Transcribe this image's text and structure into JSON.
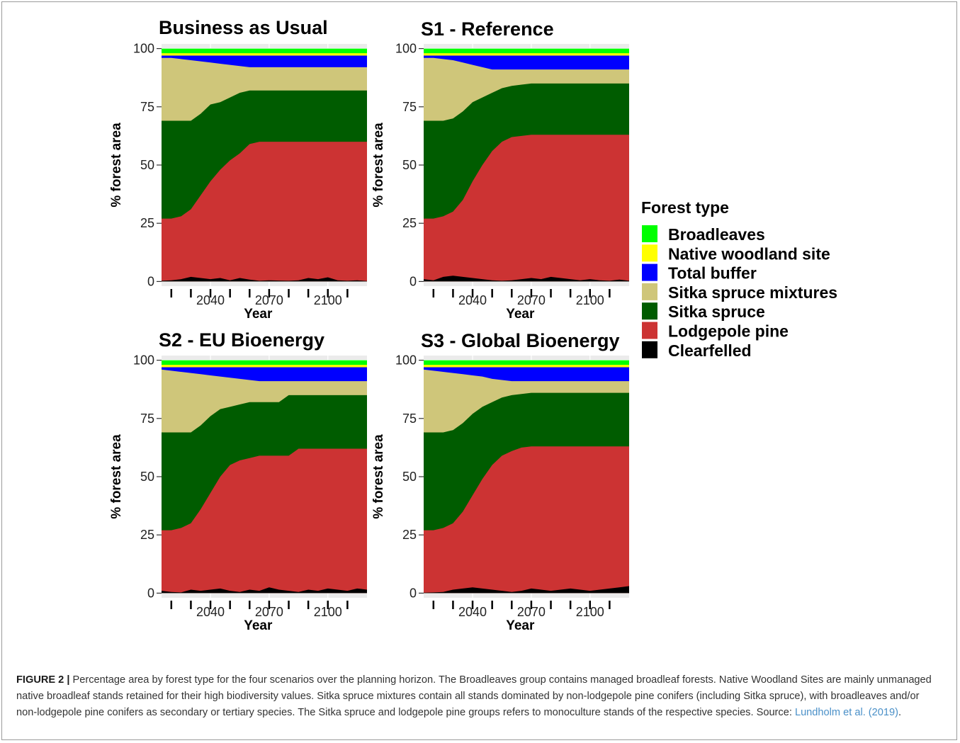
{
  "figure": {
    "legend": {
      "title": "Forest type",
      "entries": [
        {
          "label": "Broadleaves",
          "color": "#00ff00"
        },
        {
          "label": "Native woodland site",
          "color": "#ffff00"
        },
        {
          "label": "Total buffer",
          "color": "#0000ff"
        },
        {
          "label": "Sitka spruce mixtures",
          "color": "#cfc67a"
        },
        {
          "label": "Sitka spruce",
          "color": "#005c00"
        },
        {
          "label": "Lodgepole pine",
          "color": "#cc3333"
        },
        {
          "label": "Clearfelled",
          "color": "#000000"
        }
      ]
    },
    "caption": {
      "label": "FIGURE 2 |",
      "text": " Percentage area by forest type for the four scenarios over the planning horizon. The Broadleaves group contains managed broadleaf forests. Native Woodland Sites are mainly unmanaged native broadleaf stands retained for their high biodiversity values. Sitka spruce mixtures contain all stands dominated by non-lodgepole pine conifers (including Sitka spruce), with broadleaves and/or non-lodgepole pine conifers as secondary or tertiary species. The Sitka spruce and lodgepole pine groups refers to monoculture stands of the respective species. Source: ",
      "link": "Lundholm et al. (2019)",
      "end": "."
    }
  },
  "chart_data": [
    {
      "type": "area",
      "stacked": true,
      "title": "Business as Usual",
      "xlabel": "Year",
      "ylabel": "% forest area",
      "xlim": [
        2015,
        2120
      ],
      "ylim": [
        -2,
        102
      ],
      "xticks": [
        2040,
        2070,
        2100
      ],
      "yticks": [
        0,
        25,
        50,
        75,
        100
      ],
      "grid": true,
      "legend_position": "right",
      "series_order": [
        "Clearfelled",
        "Lodgepole pine",
        "Sitka spruce",
        "Sitka spruce mixtures",
        "Total buffer",
        "Native woodland site",
        "Broadleaves"
      ],
      "x": [
        2015,
        2020,
        2025,
        2030,
        2035,
        2040,
        2045,
        2050,
        2055,
        2060,
        2065,
        2070,
        2075,
        2080,
        2085,
        2090,
        2095,
        2100,
        2105,
        2110,
        2115,
        2120
      ],
      "cumulative": {
        "Clearfelled": [
          0.3,
          0.5,
          1.0,
          2.0,
          1.5,
          1.0,
          1.5,
          0.5,
          1.5,
          0.8,
          0.3,
          0.5,
          0.4,
          0.3,
          0.5,
          1.5,
          1.0,
          1.8,
          0.5,
          0.3,
          0.5,
          0.2
        ],
        "Lodgepole pine": [
          27,
          27,
          28,
          31,
          37,
          43,
          48,
          52,
          55,
          59,
          60,
          60,
          60,
          60,
          60,
          60,
          60,
          60,
          60,
          60,
          60,
          60
        ],
        "Sitka spruce": [
          69,
          69,
          69,
          69,
          72,
          76,
          77,
          79,
          81,
          82,
          82,
          82,
          82,
          82,
          82,
          82,
          82,
          82,
          82,
          82,
          82,
          82
        ],
        "Sitka spruce mixtures": [
          96,
          96,
          95.5,
          95,
          94.5,
          94,
          93.5,
          93,
          92.5,
          92,
          92,
          92,
          92,
          92,
          92,
          92,
          92,
          92,
          92,
          92,
          92,
          92
        ],
        "Total buffer": [
          97,
          97,
          97,
          97,
          97,
          97,
          97,
          97,
          97,
          97,
          97,
          97,
          97,
          97,
          97,
          97,
          97,
          97,
          97,
          97,
          97,
          97
        ],
        "Native woodland site": [
          98,
          98,
          98,
          98,
          98,
          98,
          98,
          98,
          98,
          98,
          98,
          98,
          98,
          98,
          98,
          98,
          98,
          98,
          98,
          98,
          98,
          98
        ],
        "Broadleaves": [
          100,
          100,
          100,
          100,
          100,
          100,
          100,
          100,
          100,
          100,
          100,
          100,
          100,
          100,
          100,
          100,
          100,
          100,
          100,
          100,
          100,
          100
        ]
      }
    },
    {
      "type": "area",
      "stacked": true,
      "title": "S1 - Reference",
      "xlabel": "Year",
      "ylabel": "% forest area",
      "xlim": [
        2015,
        2120
      ],
      "ylim": [
        -2,
        102
      ],
      "xticks": [
        2040,
        2070,
        2100
      ],
      "yticks": [
        0,
        25,
        50,
        75,
        100
      ],
      "grid": true,
      "legend_position": "right",
      "series_order": [
        "Clearfelled",
        "Lodgepole pine",
        "Sitka spruce",
        "Sitka spruce mixtures",
        "Total buffer",
        "Native woodland site",
        "Broadleaves"
      ],
      "x": [
        2015,
        2020,
        2025,
        2030,
        2035,
        2040,
        2045,
        2050,
        2055,
        2060,
        2065,
        2070,
        2075,
        2080,
        2085,
        2090,
        2095,
        2100,
        2105,
        2110,
        2115,
        2120
      ],
      "cumulative": {
        "Clearfelled": [
          1.0,
          0.5,
          2.0,
          2.5,
          2.0,
          1.5,
          1.0,
          0.5,
          0.3,
          0.5,
          1.0,
          1.5,
          1.0,
          2.0,
          1.5,
          1.0,
          0.5,
          1.0,
          0.5,
          0.3,
          0.8,
          0.3
        ],
        "Lodgepole pine": [
          27,
          27,
          28,
          30,
          35,
          43,
          50,
          56,
          60,
          62,
          62.5,
          63,
          63,
          63,
          63,
          63,
          63,
          63,
          63,
          63,
          63,
          63
        ],
        "Sitka spruce": [
          69,
          69,
          69,
          70,
          73,
          77,
          79,
          81,
          83,
          84,
          84.5,
          85,
          85,
          85,
          85,
          85,
          85,
          85,
          85,
          85,
          85,
          85
        ],
        "Sitka spruce mixtures": [
          96,
          96,
          95.5,
          95,
          94,
          93,
          92,
          91,
          91,
          91,
          91,
          91,
          91,
          91,
          91,
          91,
          91,
          91,
          91,
          91,
          91,
          91
        ],
        "Total buffer": [
          97,
          97,
          97,
          97,
          97,
          97,
          97,
          97,
          97,
          97,
          97,
          97,
          97,
          97,
          97,
          97,
          97,
          97,
          97,
          97,
          97,
          97
        ],
        "Native woodland site": [
          98,
          98,
          98,
          98,
          98,
          98,
          98,
          98,
          98,
          98,
          98,
          98,
          98,
          98,
          98,
          98,
          98,
          98,
          98,
          98,
          98,
          98
        ],
        "Broadleaves": [
          100,
          100,
          100,
          100,
          100,
          100,
          100,
          100,
          100,
          100,
          100,
          100,
          100,
          100,
          100,
          100,
          100,
          100,
          100,
          100,
          100,
          100
        ]
      }
    },
    {
      "type": "area",
      "stacked": true,
      "title": "S2 - EU Bioenergy",
      "xlabel": "Year",
      "ylabel": "% forest area",
      "xlim": [
        2015,
        2120
      ],
      "ylim": [
        -2,
        102
      ],
      "xticks": [
        2040,
        2070,
        2100
      ],
      "yticks": [
        0,
        25,
        50,
        75,
        100
      ],
      "grid": true,
      "legend_position": "right",
      "series_order": [
        "Clearfelled",
        "Lodgepole pine",
        "Sitka spruce",
        "Sitka spruce mixtures",
        "Total buffer",
        "Native woodland site",
        "Broadleaves"
      ],
      "x": [
        2015,
        2020,
        2025,
        2030,
        2035,
        2040,
        2045,
        2050,
        2055,
        2060,
        2065,
        2070,
        2075,
        2080,
        2085,
        2090,
        2095,
        2100,
        2105,
        2110,
        2115,
        2120
      ],
      "cumulative": {
        "Clearfelled": [
          1.0,
          0.5,
          0.3,
          1.5,
          1.0,
          1.5,
          2.0,
          1.0,
          0.5,
          1.5,
          1.0,
          2.5,
          1.5,
          1.0,
          0.5,
          1.5,
          1.0,
          2.0,
          1.5,
          1.0,
          2.0,
          1.5
        ],
        "Lodgepole pine": [
          27,
          27,
          28,
          30,
          36,
          43,
          50,
          55,
          57,
          58,
          59,
          59,
          59,
          59,
          62,
          62,
          62,
          62,
          62,
          62,
          62,
          62
        ],
        "Sitka spruce": [
          69,
          69,
          69,
          69,
          72,
          76,
          79,
          80,
          81,
          82,
          82,
          82,
          82,
          85,
          85,
          85,
          85,
          85,
          85,
          85,
          85,
          85
        ],
        "Sitka spruce mixtures": [
          96,
          95.5,
          95,
          94.5,
          94,
          93.5,
          93,
          92.5,
          92,
          91.5,
          91,
          91,
          91,
          91,
          91,
          91,
          91,
          91,
          91,
          91,
          91,
          91
        ],
        "Total buffer": [
          97,
          97,
          97,
          97,
          97,
          97,
          97,
          97,
          97,
          97,
          97,
          97,
          97,
          97,
          97,
          97,
          97,
          97,
          97,
          97,
          97,
          97
        ],
        "Native woodland site": [
          98,
          98,
          98,
          98,
          98,
          98,
          98,
          98,
          98,
          98,
          98,
          98,
          98,
          98,
          98,
          98,
          98,
          98,
          98,
          98,
          98,
          98
        ],
        "Broadleaves": [
          100,
          100,
          100,
          100,
          100,
          100,
          100,
          100,
          100,
          100,
          100,
          100,
          100,
          100,
          100,
          100,
          100,
          100,
          100,
          100,
          100,
          100
        ]
      }
    },
    {
      "type": "area",
      "stacked": true,
      "title": "S3 - Global Bioenergy",
      "xlabel": "Year",
      "ylabel": "% forest area",
      "xlim": [
        2015,
        2120
      ],
      "ylim": [
        -2,
        102
      ],
      "xticks": [
        2040,
        2070,
        2100
      ],
      "yticks": [
        0,
        25,
        50,
        75,
        100
      ],
      "grid": true,
      "legend_position": "right",
      "series_order": [
        "Clearfelled",
        "Lodgepole pine",
        "Sitka spruce",
        "Sitka spruce mixtures",
        "Total buffer",
        "Native woodland site",
        "Broadleaves"
      ],
      "x": [
        2015,
        2020,
        2025,
        2030,
        2035,
        2040,
        2045,
        2050,
        2055,
        2060,
        2065,
        2070,
        2075,
        2080,
        2085,
        2090,
        2095,
        2100,
        2105,
        2110,
        2115,
        2120
      ],
      "cumulative": {
        "Clearfelled": [
          0.2,
          0.3,
          0.5,
          1.5,
          2.0,
          2.5,
          2.0,
          1.5,
          1.0,
          0.5,
          1.0,
          2.0,
          1.5,
          1.0,
          1.5,
          2.0,
          1.5,
          1.0,
          1.5,
          2.0,
          2.5,
          3.0
        ],
        "Lodgepole pine": [
          27,
          27,
          28,
          30,
          35,
          42,
          49,
          55,
          59,
          61,
          62.5,
          63,
          63,
          63,
          63,
          63,
          63,
          63,
          63,
          63,
          63,
          63
        ],
        "Sitka spruce": [
          69,
          69,
          69,
          70,
          73,
          77,
          80,
          82,
          84,
          85,
          85.5,
          86,
          86,
          86,
          86,
          86,
          86,
          86,
          86,
          86,
          86,
          86
        ],
        "Sitka spruce mixtures": [
          96,
          95.5,
          95,
          94.5,
          94,
          93.5,
          93,
          92,
          91.5,
          91,
          91,
          91,
          91,
          91,
          91,
          91,
          91,
          91,
          91,
          91,
          91,
          91
        ],
        "Total buffer": [
          97,
          97,
          97,
          97,
          97,
          97,
          97,
          97,
          97,
          97,
          97,
          97,
          97,
          97,
          97,
          97,
          97,
          97,
          97,
          97,
          97,
          97
        ],
        "Native woodland site": [
          98,
          98,
          98,
          98,
          98,
          98,
          98,
          98,
          98,
          98,
          98,
          98,
          98,
          98,
          98,
          98,
          98,
          98,
          98,
          98,
          98,
          98
        ],
        "Broadleaves": [
          100,
          100,
          100,
          100,
          100,
          100,
          100,
          100,
          100,
          100,
          100,
          100,
          100,
          100,
          100,
          100,
          100,
          100,
          100,
          100,
          100,
          100
        ]
      }
    }
  ]
}
